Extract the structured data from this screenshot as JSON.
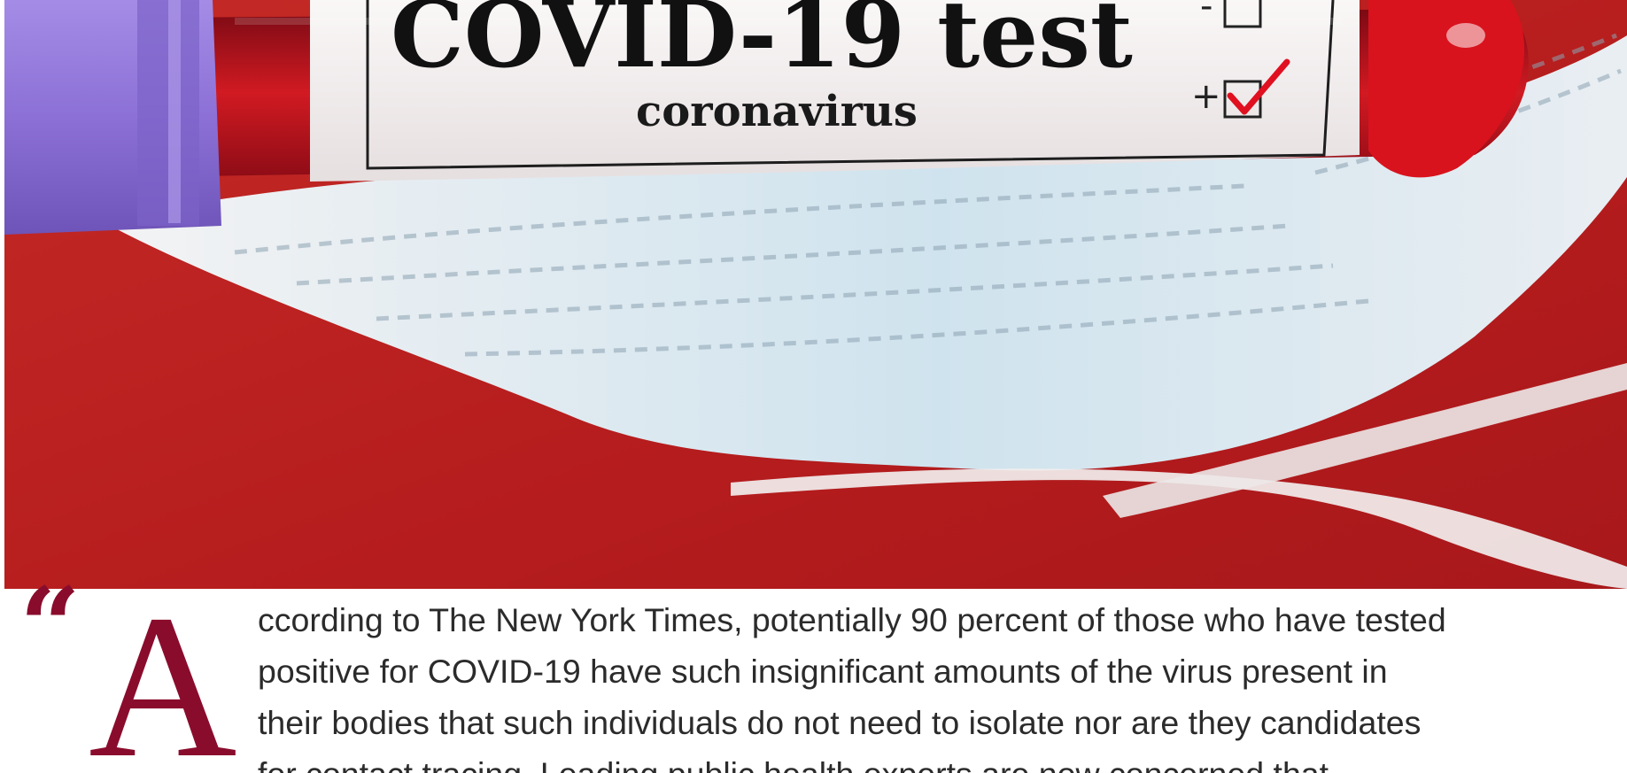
{
  "hero": {
    "tube_label_title": "COVID-19 test",
    "tube_label_subtitle": "coronavirus",
    "checkbox_negative_sign": "-",
    "checkbox_positive_sign": "+",
    "colors": {
      "background_red": "#b8201f",
      "tube_blood": "#d01820",
      "cap_purple": "#8f74d8",
      "label_white": "#f2eeee",
      "check_red": "#e01020",
      "mask_light_blue": "#cfe4ef"
    }
  },
  "article": {
    "quote_mark": "“",
    "drop_cap": "A",
    "lines": [
      "ccording to The New York Times, potentially 90 percent of those who have tested",
      "positive for COVID-19 have such insignificant amounts of the virus present in",
      "their bodies that such individuals do not need to isolate nor are they candidates",
      "for contact tracing. Leading public health experts are now concerned that"
    ],
    "colors": {
      "accent": "#8a0c2c",
      "body_text": "#2b2b2b"
    }
  }
}
